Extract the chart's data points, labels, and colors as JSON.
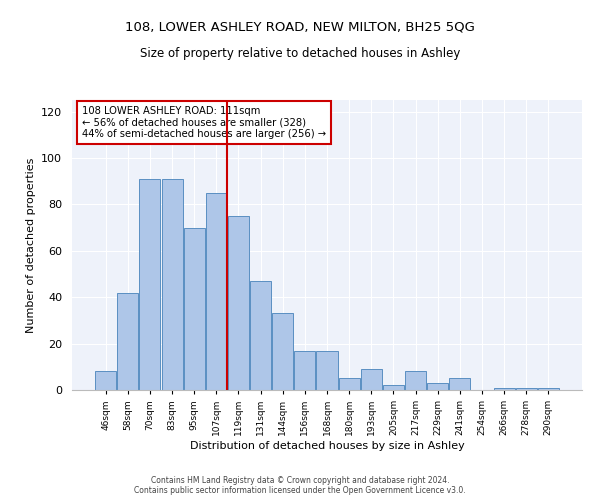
{
  "title1": "108, LOWER ASHLEY ROAD, NEW MILTON, BH25 5QG",
  "title2": "Size of property relative to detached houses in Ashley",
  "xlabel": "Distribution of detached houses by size in Ashley",
  "ylabel": "Number of detached properties",
  "categories": [
    "46sqm",
    "58sqm",
    "70sqm",
    "83sqm",
    "95sqm",
    "107sqm",
    "119sqm",
    "131sqm",
    "144sqm",
    "156sqm",
    "168sqm",
    "180sqm",
    "193sqm",
    "205sqm",
    "217sqm",
    "229sqm",
    "241sqm",
    "254sqm",
    "266sqm",
    "278sqm",
    "290sqm"
  ],
  "values": [
    8,
    42,
    91,
    91,
    70,
    85,
    75,
    47,
    33,
    17,
    17,
    5,
    9,
    2,
    8,
    3,
    5,
    0,
    1,
    1,
    1
  ],
  "bar_color": "#aec6e8",
  "bar_edgecolor": "#5a8fc2",
  "property_line_x": 5.5,
  "vline_color": "#cc0000",
  "annotation_box_edgecolor": "#cc0000",
  "annotation_line1": "108 LOWER ASHLEY ROAD: 111sqm",
  "annotation_line2": "← 56% of detached houses are smaller (328)",
  "annotation_line3": "44% of semi-detached houses are larger (256) →",
  "ylim": [
    0,
    125
  ],
  "yticks": [
    0,
    20,
    40,
    60,
    80,
    100,
    120
  ],
  "footer1": "Contains HM Land Registry data © Crown copyright and database right 2024.",
  "footer2": "Contains public sector information licensed under the Open Government Licence v3.0.",
  "background_color": "#eef2fa"
}
